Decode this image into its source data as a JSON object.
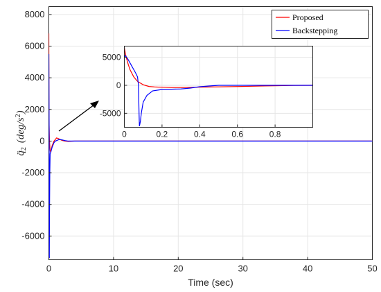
{
  "chart_data": {
    "main": {
      "type": "line",
      "xlabel": "Time (sec)",
      "ylabel": "q̈₂ (deg/s²)",
      "xlim": [
        0,
        50
      ],
      "ylim": [
        -7500,
        8500
      ],
      "xticks": [
        "0",
        "10",
        "20",
        "30",
        "40",
        "50"
      ],
      "yticks": [
        "-6000",
        "-4000",
        "-2000",
        "0",
        "2000",
        "4000",
        "6000",
        "8000"
      ],
      "grid": true,
      "legend_position": "top-right",
      "series": [
        {
          "name": "Proposed",
          "color": "#ff0000",
          "x": [
            0,
            0.02,
            0.05,
            0.1,
            0.2,
            0.3,
            0.5,
            0.8,
            1.0,
            1.2,
            1.5,
            2.0,
            2.5,
            3.0,
            4.0,
            5.0,
            50
          ],
          "y": [
            6800,
            3000,
            1000,
            0,
            -600,
            -700,
            -300,
            0,
            100,
            200,
            150,
            50,
            0,
            -20,
            0,
            0,
            0
          ]
        },
        {
          "name": "Backstepping",
          "color": "#0000ff",
          "x": [
            0,
            0.02,
            0.05,
            0.08,
            0.1,
            0.15,
            0.2,
            0.3,
            0.5,
            0.8,
            1.0,
            1.3,
            1.6,
            2.0,
            2.5,
            3.0,
            4.0,
            5.0,
            50
          ],
          "y": [
            5500,
            3500,
            0,
            -7400,
            -5000,
            -2000,
            -800,
            -700,
            -400,
            -100,
            0,
            50,
            100,
            80,
            30,
            0,
            0,
            0,
            0
          ]
        }
      ]
    },
    "inset": {
      "type": "line",
      "xlim": [
        0,
        1
      ],
      "ylim": [
        -7500,
        7000
      ],
      "xticks": [
        "0",
        "0.2",
        "0.4",
        "0.6",
        "0.8"
      ],
      "yticks": [
        "-5000",
        "0",
        "5000"
      ],
      "grid": true,
      "series": [
        {
          "name": "Proposed",
          "color": "#ff0000",
          "x": [
            0,
            0.005,
            0.01,
            0.02,
            0.03,
            0.05,
            0.07,
            0.1,
            0.13,
            0.16,
            0.2,
            0.25,
            0.3,
            0.35,
            0.4,
            0.5,
            0.6,
            0.7,
            0.8,
            0.9,
            1.0
          ],
          "y": [
            6700,
            5800,
            5000,
            3800,
            2800,
            1500,
            700,
            100,
            -200,
            -300,
            -350,
            -400,
            -400,
            -380,
            -330,
            -280,
            -220,
            -150,
            -80,
            -20,
            0
          ]
        },
        {
          "name": "Backstepping",
          "color": "#0000ff",
          "x": [
            0,
            0.005,
            0.01,
            0.02,
            0.03,
            0.04,
            0.05,
            0.06,
            0.07,
            0.075,
            0.078,
            0.08,
            0.085,
            0.09,
            0.1,
            0.12,
            0.15,
            0.2,
            0.25,
            0.3,
            0.35,
            0.4,
            0.5,
            0.6,
            0.7,
            0.8,
            0.9,
            1.0
          ],
          "y": [
            5000,
            5300,
            5100,
            4600,
            4000,
            3400,
            2800,
            2200,
            1500,
            0,
            -5000,
            -7300,
            -6500,
            -5000,
            -3000,
            -1800,
            -1000,
            -750,
            -700,
            -650,
            -500,
            -250,
            0,
            0,
            0,
            0,
            0,
            0
          ]
        }
      ]
    }
  }
}
